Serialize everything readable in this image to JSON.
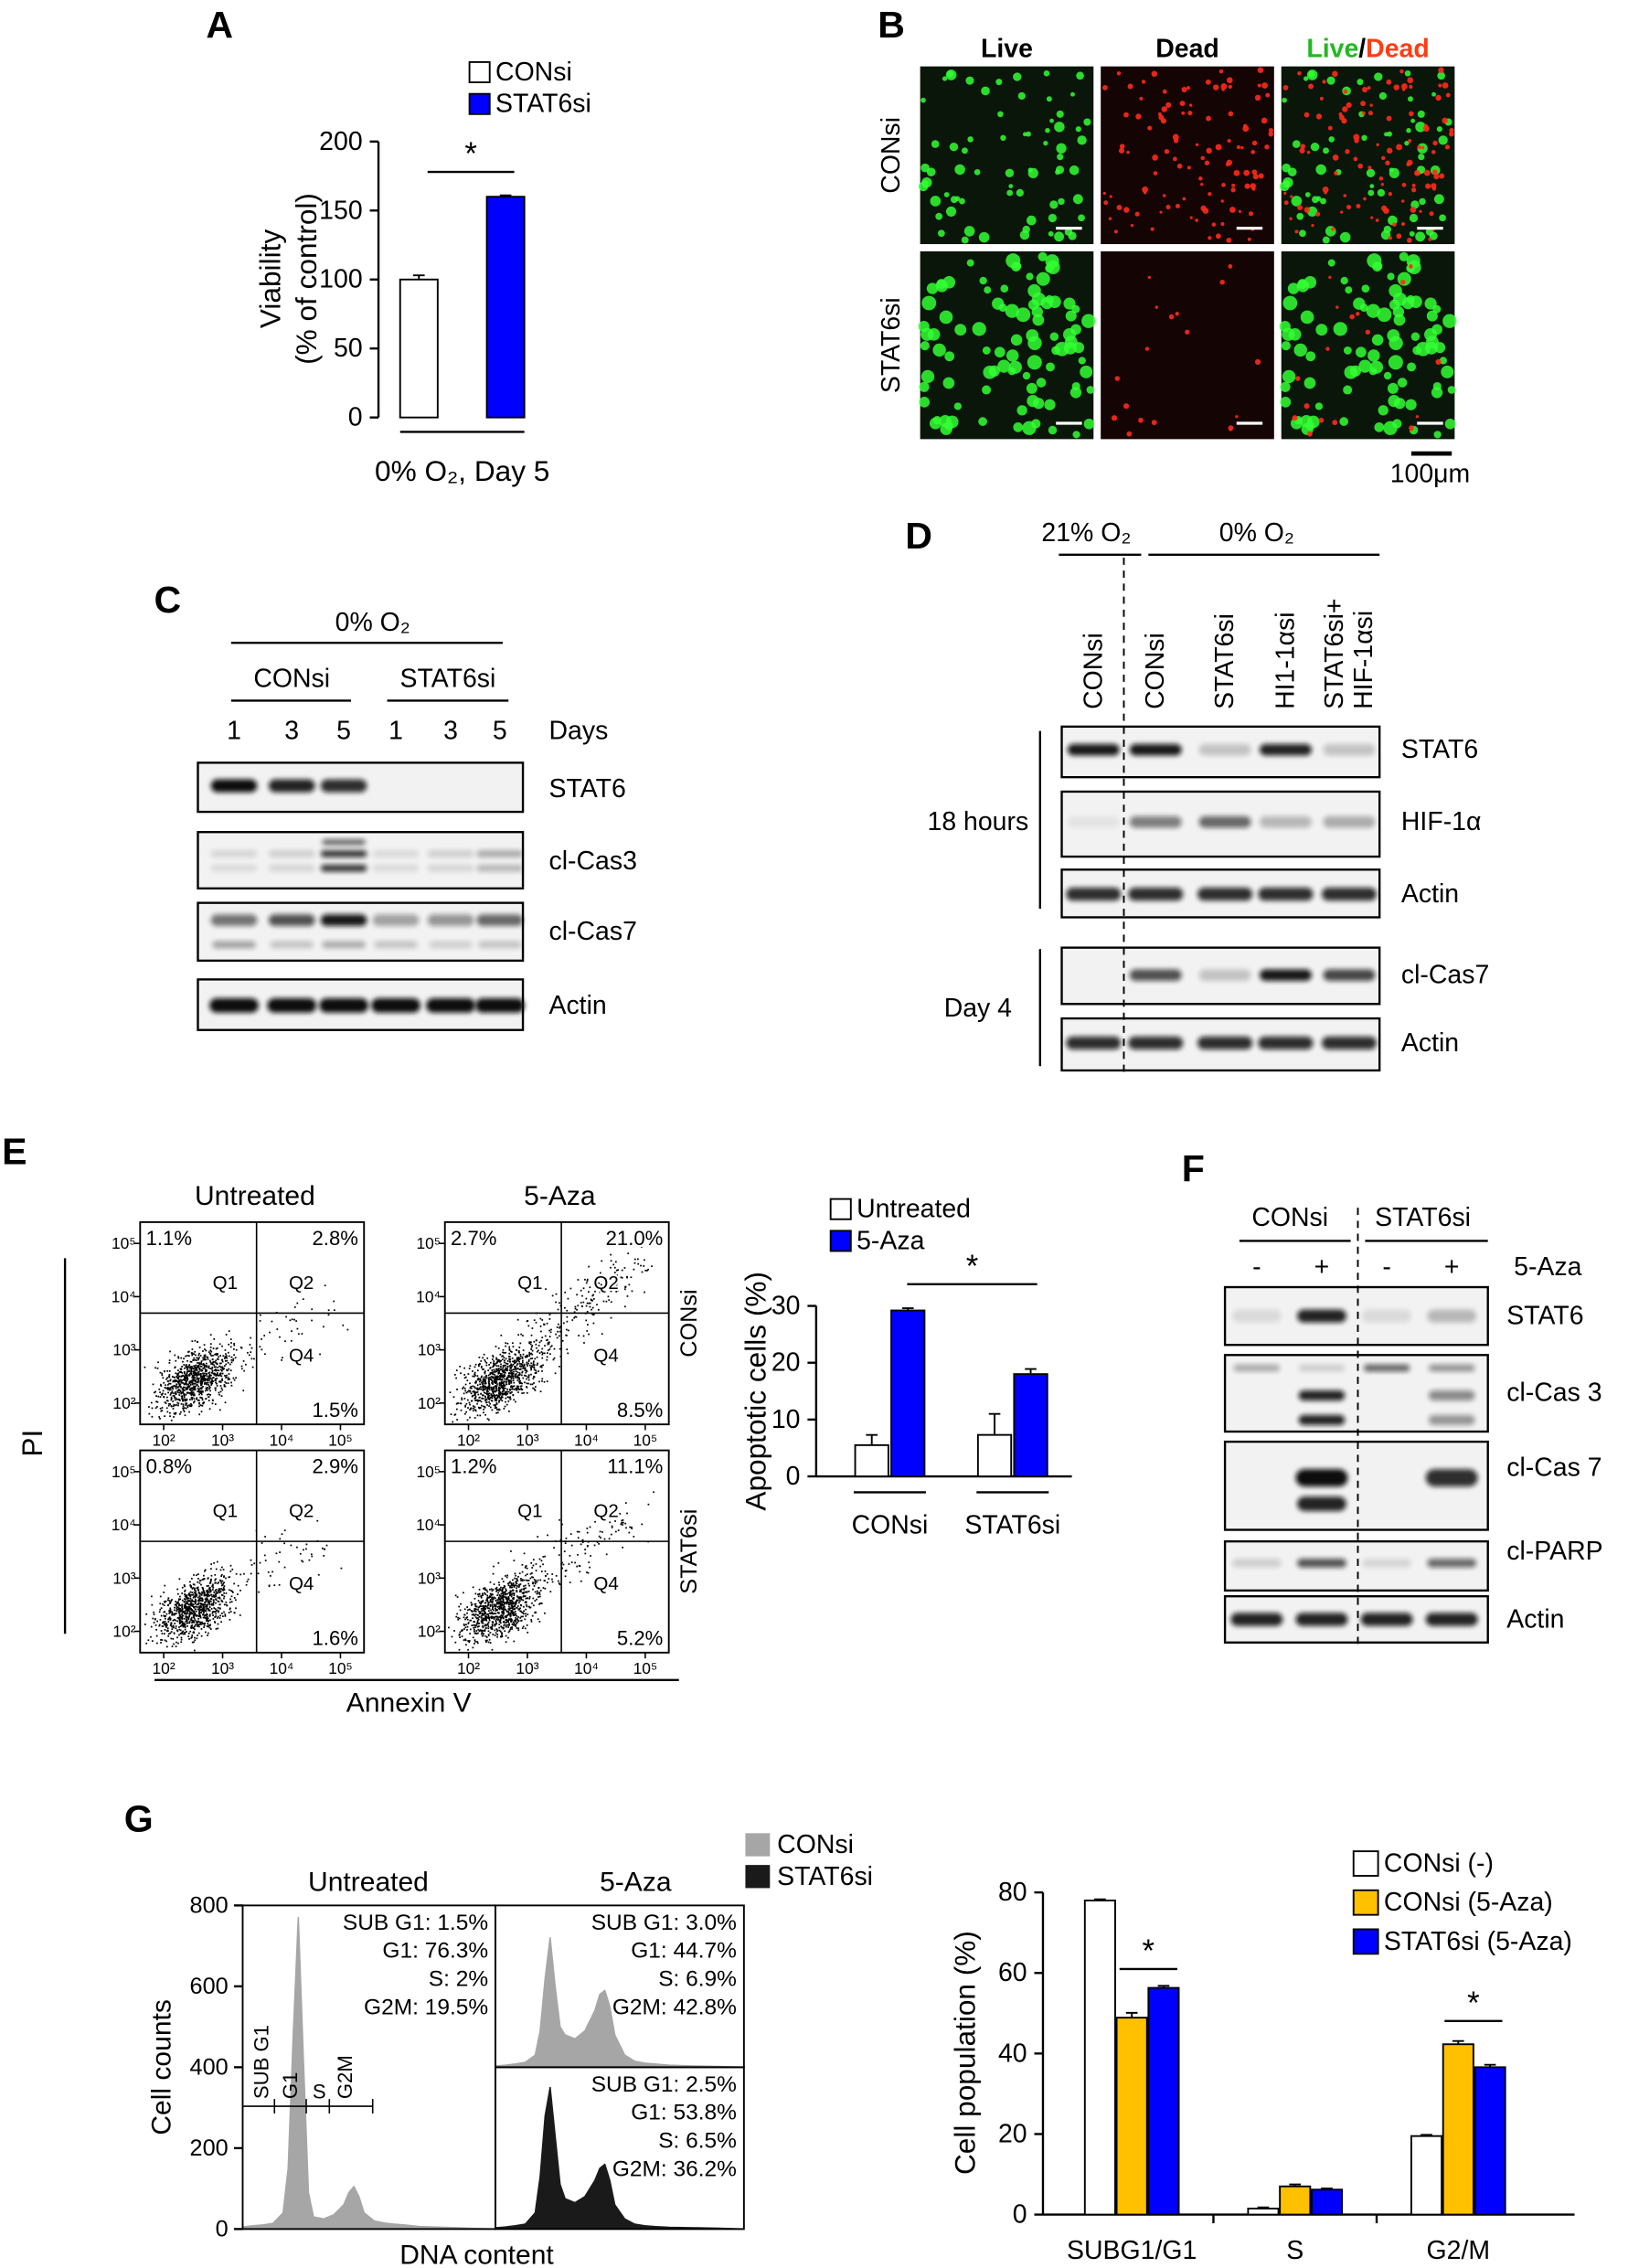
{
  "panel_labels": [
    "A",
    "B",
    "C",
    "D",
    "E",
    "F",
    "G"
  ],
  "chart_data": [
    {
      "type": "bar",
      "categories": [
        "0% O₂, Day 5"
      ],
      "series": [
        {
          "name": "CONsi",
          "color": "#ffffff",
          "values": [
            100
          ],
          "errors": [
            3
          ]
        },
        {
          "name": "STAT6si",
          "color": "#0000ff",
          "values": [
            160
          ],
          "errors": [
            1
          ]
        }
      ],
      "y_label": [
        "Viability",
        "(% of control)"
      ],
      "ylim": [
        0,
        200
      ],
      "yticks": [
        0,
        50,
        100,
        150,
        200
      ],
      "annotations": [
        "*"
      ]
    },
    {
      "type": "bar",
      "categories": [
        "CONsi",
        "STAT6si"
      ],
      "series": [
        {
          "name": "Untreated",
          "color": "#ffffff",
          "values": [
            5.5,
            7.3
          ],
          "errors": [
            1.8,
            3.7
          ]
        },
        {
          "name": "5-Aza",
          "color": "#0000ff",
          "values": [
            29.2,
            18
          ],
          "errors": [
            0.4,
            0.9
          ]
        }
      ],
      "y_label": "Apoptotic cells (%)",
      "ylim": [
        0,
        30
      ],
      "yticks": [
        0,
        10,
        20,
        30
      ],
      "annotations": [
        "*"
      ]
    },
    {
      "type": "area",
      "title": "Untreated",
      "x": [
        0,
        4,
        8,
        12,
        16,
        18,
        20,
        22,
        24,
        26,
        28,
        32,
        36,
        40,
        42,
        44,
        46,
        48,
        52,
        56,
        60,
        64,
        70,
        80,
        90,
        100
      ],
      "xlim": [
        0,
        100
      ],
      "ylim": [
        0,
        800
      ],
      "yticks": [
        0,
        200,
        400,
        600,
        800
      ],
      "y_label": "Cell counts",
      "x_label": "DNA content",
      "gates": [
        "SUB G1",
        "G1",
        "S",
        "G2M"
      ],
      "series": [
        {
          "color": "#a6a6a6",
          "values": [
            5,
            8,
            10,
            14,
            40,
            150,
            480,
            770,
            420,
            90,
            30,
            25,
            35,
            60,
            90,
            105,
            80,
            40,
            20,
            15,
            12,
            10,
            6,
            4,
            2,
            0
          ],
          "annotations": [
            "SUB G1: 1.5%",
            "G1: 76.3%",
            "S: 2%",
            "G2M: 19.5%"
          ]
        }
      ]
    },
    {
      "type": "area",
      "title": "5-Aza",
      "x": [
        0,
        4,
        8,
        12,
        16,
        18,
        20,
        22,
        24,
        26,
        28,
        32,
        36,
        40,
        42,
        44,
        46,
        48,
        52,
        56,
        60,
        64,
        70,
        80,
        90,
        100
      ],
      "xlim": [
        0,
        100
      ],
      "ylim": [
        0,
        400
      ],
      "series": [
        {
          "name": "CONsi",
          "color": "#a6a6a6",
          "values": [
            3,
            5,
            8,
            12,
            30,
            90,
            220,
            320,
            200,
            100,
            80,
            70,
            90,
            140,
            180,
            190,
            150,
            80,
            30,
            15,
            10,
            8,
            5,
            3,
            2,
            0
          ],
          "annotations": [
            "SUB G1: 3.0%",
            "G1: 44.7%",
            "S: 6.9%",
            "G2M: 42.8%"
          ]
        },
        {
          "name": "STAT6si",
          "color": "#1a1a1a",
          "values": [
            3,
            5,
            8,
            12,
            40,
            130,
            280,
            350,
            230,
            110,
            75,
            65,
            80,
            120,
            150,
            160,
            120,
            60,
            25,
            12,
            8,
            6,
            4,
            3,
            2,
            0
          ],
          "annotations": [
            "SUB G1: 2.5%",
            "G1: 53.8%",
            "S: 6.5%",
            "G2M: 36.2%"
          ]
        }
      ]
    },
    {
      "type": "bar",
      "categories": [
        "SUBG1/G1",
        "S",
        "G2/M"
      ],
      "series": [
        {
          "name": "CONsi (-)",
          "color": "#ffffff",
          "values": [
            78,
            1.5,
            19.5
          ],
          "errors": [
            0.3,
            0.3,
            0.3
          ]
        },
        {
          "name": "CONsi (5-Aza)",
          "color": "#ffc000",
          "values": [
            48.9,
            7,
            42.3
          ],
          "errors": [
            1.2,
            0.5,
            0.8
          ]
        },
        {
          "name": "STAT6si (5-Aza)",
          "color": "#0000ff",
          "values": [
            56.3,
            6.2,
            36.6
          ],
          "errors": [
            0.5,
            0.3,
            0.6
          ]
        }
      ],
      "y_label": "Cell population (%)",
      "ylim": [
        0,
        80
      ],
      "yticks": [
        0,
        20,
        40,
        60,
        80
      ],
      "annotations": [
        "*",
        "*"
      ]
    }
  ],
  "panel_b": {
    "columns": [
      "Live",
      "Dead"
    ],
    "merged": [
      "Live",
      "/",
      "Dead"
    ],
    "rows": [
      "CONsi",
      "STAT6si"
    ],
    "scale_bar": "100μm"
  },
  "panel_c": {
    "condition": "0% O₂",
    "groups": [
      "CONsi",
      "STAT6si"
    ],
    "lanes": [
      "1",
      "3",
      "5",
      "1",
      "3",
      "5"
    ],
    "lane_unit": "Days",
    "blots": [
      "STAT6",
      "cl-Cas3",
      "cl-Cas7",
      "Actin"
    ]
  },
  "panel_d": {
    "conditions": [
      "21% O₂",
      "0% O₂"
    ],
    "lanes": [
      [
        "CONsi"
      ],
      [
        "CONsi"
      ],
      [
        "STAT6si"
      ],
      [
        "HI1-1αsi"
      ],
      [
        "STAT6si+",
        "HIF-1αsi"
      ]
    ],
    "groups": [
      {
        "label": "18 hours",
        "blots": [
          "STAT6",
          "HIF-1α",
          "Actin"
        ]
      },
      {
        "label": "Day 4",
        "blots": [
          "cl-Cas7",
          "Actin"
        ]
      }
    ]
  },
  "panel_e_flow": {
    "titles": [
      "Untreated",
      "5-Aza"
    ],
    "rows": [
      "CONsi",
      "STAT6si"
    ],
    "y_label": "PI",
    "x_label": "Annexin V",
    "lim": [
      1.6,
      5.4
    ],
    "ticks": [
      {
        "value": 2,
        "label": "10²"
      },
      {
        "value": 3,
        "label": "10³"
      },
      {
        "value": 4,
        "label": "10⁴"
      },
      {
        "value": 5,
        "label": "10⁵"
      }
    ],
    "gates": [
      "Q1",
      "Q2",
      "Q4"
    ],
    "quadrants": [
      [
        [
          "1.1%",
          "2.8%",
          "1.5%"
        ],
        [
          "2.7%",
          "21.0%",
          "8.5%"
        ]
      ],
      [
        [
          "0.8%",
          "2.9%",
          "1.6%"
        ],
        [
          "1.2%",
          "11.1%",
          "5.2%"
        ]
      ]
    ]
  },
  "panel_f": {
    "groups": [
      "CONsi",
      "STAT6si"
    ],
    "treatment_signs": [
      "-",
      "+",
      "-",
      "+"
    ],
    "treatment": "5-Aza",
    "blots": [
      "STAT6",
      "cl-Cas 3",
      "cl-Cas 7",
      "cl-PARP",
      "Actin"
    ]
  }
}
